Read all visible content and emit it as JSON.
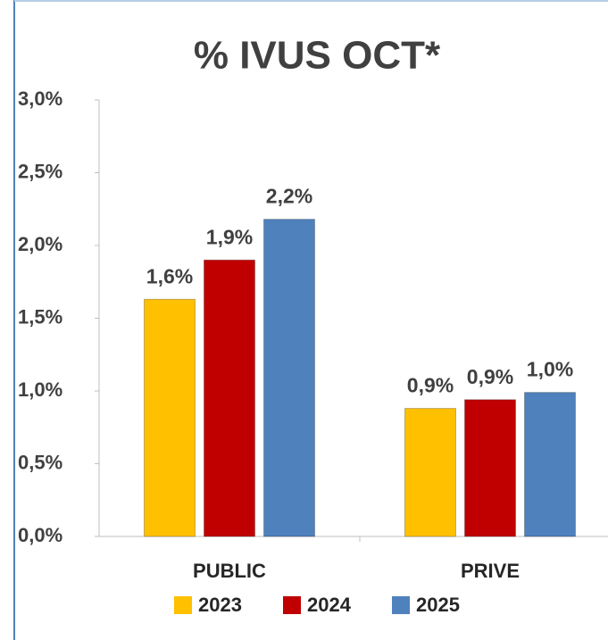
{
  "chart_data": {
    "type": "bar",
    "title": "% IVUS OCT*",
    "categories": [
      "PUBLIC",
      "PRIVE"
    ],
    "series": [
      {
        "name": "2023",
        "color": "#ffc000",
        "values": [
          1.63,
          0.88
        ],
        "value_labels": [
          "1,6%",
          "0,9%"
        ]
      },
      {
        "name": "2024",
        "color": "#c00000",
        "values": [
          1.9,
          0.94
        ],
        "value_labels": [
          "1,9%",
          "0,9%"
        ]
      },
      {
        "name": "2025",
        "color": "#4f81bd",
        "values": [
          2.18,
          0.99
        ],
        "value_labels": [
          "2,2%",
          "1,0%"
        ]
      }
    ],
    "ylim": [
      0,
      3.0
    ],
    "yticks": [
      {
        "value": 0,
        "label": "0,0%"
      },
      {
        "value": 0.5,
        "label": "0,5%"
      },
      {
        "value": 1.0,
        "label": "1,0%"
      },
      {
        "value": 1.5,
        "label": "1,5%"
      },
      {
        "value": 2.0,
        "label": "2,0%"
      },
      {
        "value": 2.5,
        "label": "2,5%"
      },
      {
        "value": 3.0,
        "label": "3,0%"
      }
    ],
    "legend": "bottom"
  }
}
